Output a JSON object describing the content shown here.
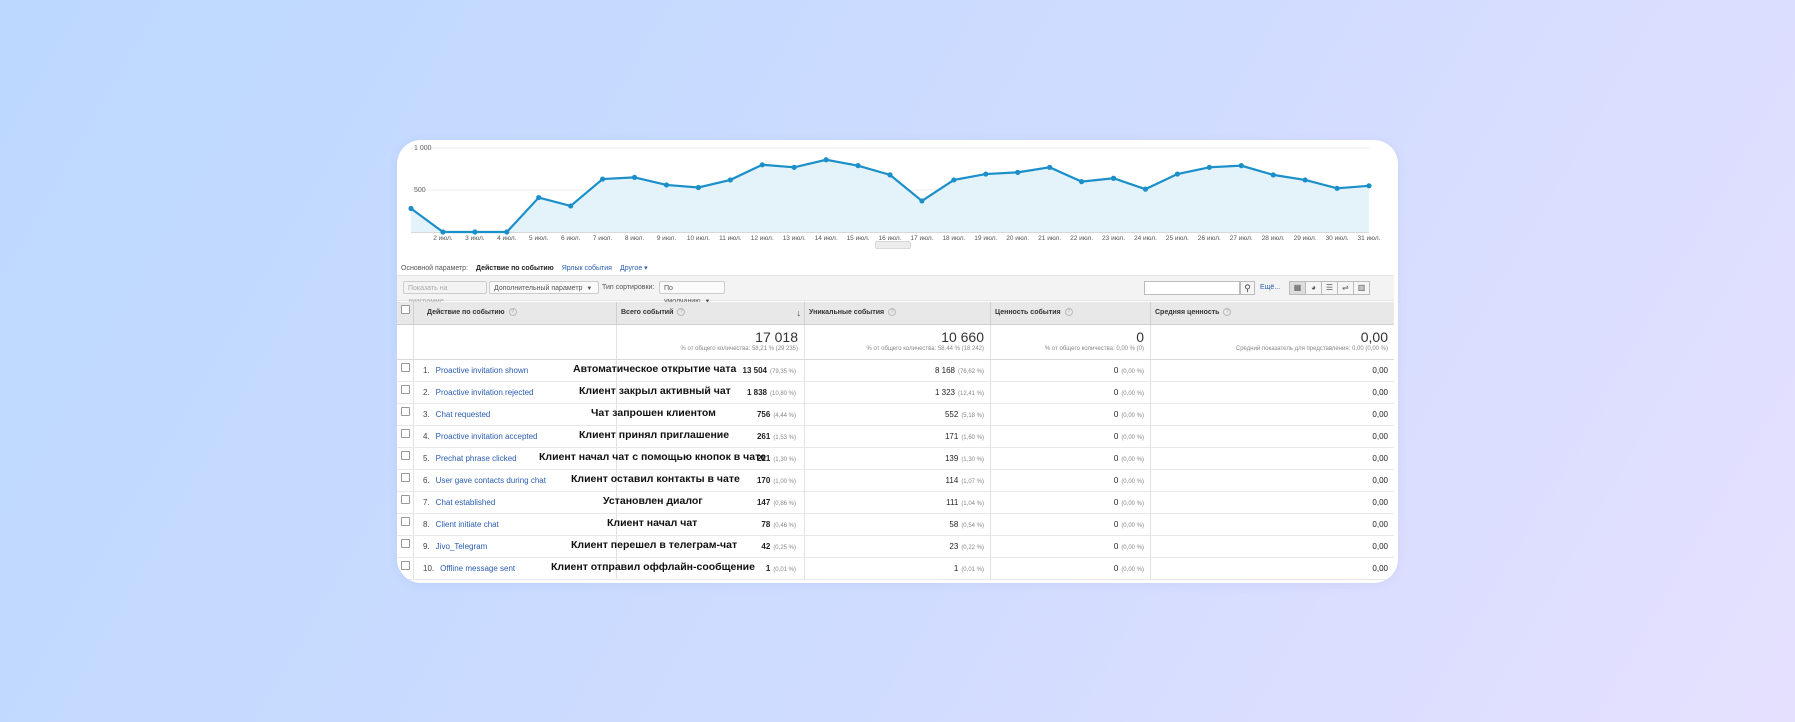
{
  "chart": {
    "y_ticks": [
      {
        "label": "1 000",
        "value": 1000
      },
      {
        "label": "500",
        "value": 500
      }
    ],
    "x_labels": [
      "2 июл.",
      "3 июл.",
      "4 июл.",
      "5 июл.",
      "6 июл.",
      "7 июл.",
      "8 июл.",
      "9 июл.",
      "10 июл.",
      "11 июл.",
      "12 июл.",
      "13 июл.",
      "14 июл.",
      "15 июл.",
      "16 июл.",
      "17 июл.",
      "18 июл.",
      "19 июл.",
      "20 июл.",
      "21 июл.",
      "22 июл.",
      "23 июл.",
      "24 июл.",
      "25 июл.",
      "26 июл.",
      "27 июл.",
      "28 июл.",
      "29 июл.",
      "30 июл.",
      "31 июл."
    ],
    "values": [
      280,
      0,
      0,
      0,
      410,
      310,
      630,
      650,
      560,
      530,
      620,
      800,
      770,
      860,
      790,
      680,
      370,
      620,
      690,
      710,
      770,
      600,
      640,
      510,
      690,
      770,
      790,
      680,
      620,
      520,
      550
    ],
    "ymax": 1000,
    "line_color": "#1a8fc9",
    "fill_color": "#e4f2fa"
  },
  "dimension": {
    "label": "Основной параметр:",
    "current": "Действие по событию",
    "link1": "Ярлык события",
    "link2": "Другое"
  },
  "toolbar": {
    "plot_rows": "Показать на диаграмме",
    "secondary": "Дополнительный параметр",
    "sort_label": "Тип сортировки:",
    "sort_value": "По умолчанию",
    "more": "Ещё..."
  },
  "headers": {
    "action": "Действие по событию",
    "total": "Всего событий",
    "unique": "Уникальные события",
    "value": "Ценность события",
    "avg": "Средняя ценность"
  },
  "totals": {
    "total": "17 018",
    "total_sub": "% от общего количества: 58,21 % (29 235)",
    "unique": "10 660",
    "unique_sub": "% от общего количества: 58,44 % (18 242)",
    "value": "0",
    "value_sub": "% от общего количества: 0,00 % (0)",
    "avg": "0,00",
    "avg_sub": "Средний показатель для представления: 0,00 (0,00 %)"
  },
  "rows": [
    {
      "n": "1.",
      "event": "Proactive invitation shown",
      "ann": "Автоматическое открытие чата",
      "total": "13 504",
      "total_pct": "(79,35 %)",
      "unique": "8 168",
      "unique_pct": "(76,62 %)",
      "value": "0",
      "value_pct": "(0,00 %)",
      "avg": "0,00"
    },
    {
      "n": "2.",
      "event": "Proactive invitation rejected",
      "ann": "Клиент закрыл активный чат",
      "total": "1 838",
      "total_pct": "(10,80 %)",
      "unique": "1 323",
      "unique_pct": "(12,41 %)",
      "value": "0",
      "value_pct": "(0,00 %)",
      "avg": "0,00"
    },
    {
      "n": "3.",
      "event": "Chat requested",
      "ann": "Чат запрошен клиентом",
      "total": "756",
      "total_pct": "(4,44 %)",
      "unique": "552",
      "unique_pct": "(5,18 %)",
      "value": "0",
      "value_pct": "(0,00 %)",
      "avg": "0,00"
    },
    {
      "n": "4.",
      "event": "Proactive invitation accepted",
      "ann": "Клиент принял приглашение",
      "total": "261",
      "total_pct": "(1,53 %)",
      "unique": "171",
      "unique_pct": "(1,60 %)",
      "value": "0",
      "value_pct": "(0,00 %)",
      "avg": "0,00"
    },
    {
      "n": "5.",
      "event": "Prechat phrase clicked",
      "ann": "Клиент начал чат с помощью кнопок в чате",
      "total": "221",
      "total_pct": "(1,30 %)",
      "unique": "139",
      "unique_pct": "(1,30 %)",
      "value": "0",
      "value_pct": "(0,00 %)",
      "avg": "0,00"
    },
    {
      "n": "6.",
      "event": "User gave contacts during chat",
      "ann": "Клиент оставил контакты в чате",
      "total": "170",
      "total_pct": "(1,00 %)",
      "unique": "114",
      "unique_pct": "(1,07 %)",
      "value": "0",
      "value_pct": "(0,00 %)",
      "avg": "0,00"
    },
    {
      "n": "7.",
      "event": "Chat established",
      "ann": "Установлен диалог",
      "total": "147",
      "total_pct": "(0,86 %)",
      "unique": "111",
      "unique_pct": "(1,04 %)",
      "value": "0",
      "value_pct": "(0,00 %)",
      "avg": "0,00"
    },
    {
      "n": "8.",
      "event": "Client initiate chat",
      "ann": "Клиент начал чат",
      "total": "78",
      "total_pct": "(0,46 %)",
      "unique": "58",
      "unique_pct": "(0,54 %)",
      "value": "0",
      "value_pct": "(0,00 %)",
      "avg": "0,00"
    },
    {
      "n": "9.",
      "event": "Jivo_Telegram",
      "ann": "Клиент перешел в телеграм-чат",
      "total": "42",
      "total_pct": "(0,25 %)",
      "unique": "23",
      "unique_pct": "(0,22 %)",
      "value": "0",
      "value_pct": "(0,00 %)",
      "avg": "0,00"
    },
    {
      "n": "10.",
      "event": "Offline message sent",
      "ann": "Клиент отправил оффлайн-сообщение",
      "total": "1",
      "total_pct": "(0,01 %)",
      "unique": "1",
      "unique_pct": "(0,01 %)",
      "value": "0",
      "value_pct": "(0,00 %)",
      "avg": "0,00"
    }
  ]
}
